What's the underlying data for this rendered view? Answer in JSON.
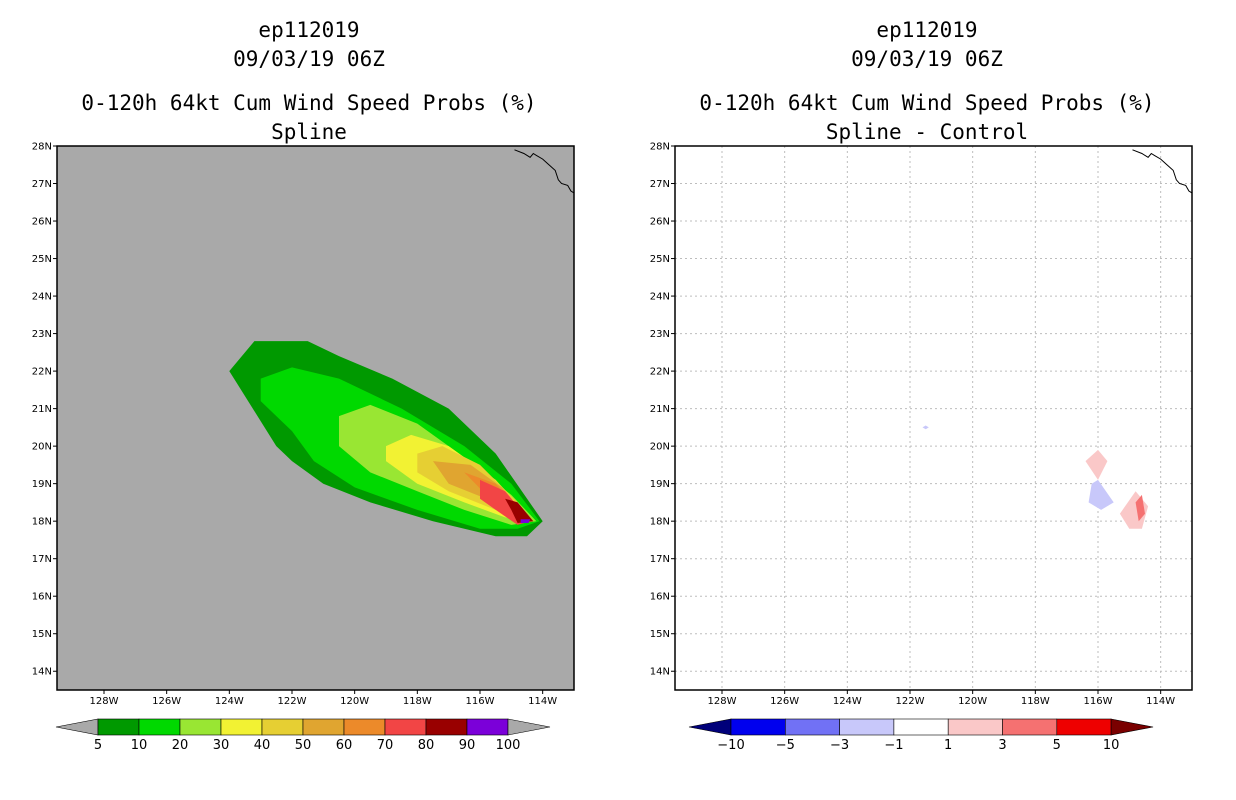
{
  "colors": {
    "spline_background": "#a9a9a9",
    "spline_levels": [
      "#009900",
      "#00d900",
      "#99e633",
      "#f2f233",
      "#e6cf33",
      "#e0a530",
      "#ec8a2a",
      "#f24545",
      "#990000",
      "#7b00d9"
    ],
    "diff_levels": [
      "#00007a",
      "#0000ee",
      "#7171f5",
      "#c8c8fa",
      "#ffffff",
      "#fac8c8",
      "#f57171",
      "#ee0000",
      "#7a0000"
    ],
    "neutral_arrow": "#a9a9a9"
  },
  "chart_data": [
    {
      "type": "filled-contour",
      "storm": "ep112019",
      "datetime": "09/03/19 06Z",
      "title": "0-120h 64kt Cum Wind Speed Probs (%)",
      "subtitle": "Spline",
      "lon_range": [
        -129.5,
        -113.0
      ],
      "lat_range": [
        13.5,
        28.0
      ],
      "xticks": [
        "128W",
        "126W",
        "124W",
        "122W",
        "120W",
        "118W",
        "116W",
        "114W"
      ],
      "yticks": [
        "14N",
        "15N",
        "16N",
        "17N",
        "18N",
        "19N",
        "20N",
        "21N",
        "22N",
        "23N",
        "24N",
        "25N",
        "26N",
        "27N",
        "28N"
      ],
      "colorbar": {
        "labels": [
          "5",
          "10",
          "20",
          "30",
          "40",
          "50",
          "60",
          "70",
          "80",
          "90",
          "100"
        ],
        "colors": [
          "#009900",
          "#00d900",
          "#99e633",
          "#f2f233",
          "#e6cf33",
          "#e0a530",
          "#ec8a2a",
          "#f24545",
          "#990000",
          "#7b00d9"
        ]
      },
      "regions": [
        {
          "level": "5-10",
          "color": "#009900",
          "points": [
            [
              -124.0,
              22.0
            ],
            [
              -123.2,
              22.8
            ],
            [
              -121.5,
              22.8
            ],
            [
              -120.5,
              22.4
            ],
            [
              -118.8,
              21.8
            ],
            [
              -117.0,
              21.0
            ],
            [
              -115.5,
              19.8
            ],
            [
              -114.0,
              18.0
            ],
            [
              -114.5,
              17.6
            ],
            [
              -115.5,
              17.6
            ],
            [
              -117.5,
              18.0
            ],
            [
              -119.5,
              18.5
            ],
            [
              -121.0,
              19.0
            ],
            [
              -122.0,
              19.6
            ],
            [
              -122.5,
              20.0
            ]
          ]
        },
        {
          "level": "10-20",
          "color": "#00d900",
          "points": [
            [
              -123.0,
              21.8
            ],
            [
              -122.0,
              22.1
            ],
            [
              -120.5,
              21.8
            ],
            [
              -118.5,
              21.0
            ],
            [
              -116.5,
              20.0
            ],
            [
              -115.0,
              19.0
            ],
            [
              -114.1,
              18.0
            ],
            [
              -114.8,
              17.8
            ],
            [
              -116.0,
              17.8
            ],
            [
              -118.0,
              18.3
            ],
            [
              -120.0,
              18.9
            ],
            [
              -121.3,
              19.6
            ],
            [
              -122.0,
              20.4
            ],
            [
              -123.0,
              21.2
            ]
          ]
        },
        {
          "level": "20-30",
          "color": "#99e633",
          "points": [
            [
              -120.5,
              20.8
            ],
            [
              -119.5,
              21.1
            ],
            [
              -118.0,
              20.6
            ],
            [
              -116.5,
              19.7
            ],
            [
              -115.0,
              18.7
            ],
            [
              -114.2,
              18.0
            ],
            [
              -115.0,
              17.9
            ],
            [
              -116.5,
              18.3
            ],
            [
              -118.0,
              18.8
            ],
            [
              -119.5,
              19.3
            ],
            [
              -120.5,
              20.0
            ]
          ]
        },
        {
          "level": "30-40",
          "color": "#f2f233",
          "points": [
            [
              -119.0,
              20.0
            ],
            [
              -118.2,
              20.3
            ],
            [
              -117.0,
              20.0
            ],
            [
              -115.5,
              19.1
            ],
            [
              -114.3,
              18.0
            ],
            [
              -115.2,
              18.1
            ],
            [
              -116.5,
              18.5
            ],
            [
              -118.0,
              19.0
            ],
            [
              -119.0,
              19.6
            ]
          ]
        },
        {
          "level": "40-50",
          "color": "#e6cf33",
          "points": [
            [
              -118.0,
              19.8
            ],
            [
              -117.2,
              20.0
            ],
            [
              -116.0,
              19.5
            ],
            [
              -114.8,
              18.5
            ],
            [
              -114.3,
              18.0
            ],
            [
              -115.5,
              18.3
            ],
            [
              -117.0,
              18.8
            ],
            [
              -118.0,
              19.3
            ]
          ]
        },
        {
          "level": "50-60",
          "color": "#e0a530",
          "points": [
            [
              -117.5,
              19.6
            ],
            [
              -116.3,
              19.5
            ],
            [
              -115.3,
              18.9
            ],
            [
              -114.5,
              18.1
            ],
            [
              -115.8,
              18.6
            ],
            [
              -117.0,
              19.0
            ]
          ]
        },
        {
          "level": "60-70",
          "color": "#ec8a2a",
          "points": [
            [
              -116.5,
              19.3
            ],
            [
              -115.5,
              19.0
            ],
            [
              -114.6,
              18.2
            ],
            [
              -115.8,
              18.7
            ]
          ]
        },
        {
          "level": "70-80",
          "color": "#f24545",
          "points": [
            [
              -116.0,
              19.1
            ],
            [
              -115.2,
              18.8
            ],
            [
              -114.4,
              18.0
            ],
            [
              -114.8,
              17.9
            ],
            [
              -115.5,
              18.3
            ],
            [
              -116.0,
              18.6
            ]
          ]
        },
        {
          "level": "80-90",
          "color": "#990000",
          "points": [
            [
              -115.2,
              18.6
            ],
            [
              -114.8,
              18.5
            ],
            [
              -114.3,
              18.0
            ],
            [
              -114.8,
              17.95
            ],
            [
              -115.0,
              18.3
            ]
          ]
        },
        {
          "level": "90-100",
          "color": "#7b00d9",
          "points": [
            [
              -114.7,
              18.05
            ],
            [
              -114.4,
              18.05
            ],
            [
              -114.45,
              17.95
            ],
            [
              -114.7,
              17.95
            ]
          ]
        }
      ]
    },
    {
      "type": "filled-contour",
      "storm": "ep112019",
      "datetime": "09/03/19 06Z",
      "title": "0-120h 64kt Cum Wind Speed Probs (%)",
      "subtitle": "Spline - Control",
      "lon_range": [
        -129.5,
        -113.0
      ],
      "lat_range": [
        13.5,
        28.0
      ],
      "xticks": [
        "128W",
        "126W",
        "124W",
        "122W",
        "120W",
        "118W",
        "116W",
        "114W"
      ],
      "yticks": [
        "14N",
        "15N",
        "16N",
        "17N",
        "18N",
        "19N",
        "20N",
        "21N",
        "22N",
        "23N",
        "24N",
        "25N",
        "26N",
        "27N",
        "28N"
      ],
      "grid": true,
      "colorbar": {
        "labels": [
          "-10",
          "-5",
          "-3",
          "-1",
          "1",
          "3",
          "5",
          "10"
        ],
        "colors": [
          "#00007a",
          "#0000ee",
          "#7171f5",
          "#c8c8fa",
          "#ffffff",
          "#fac8c8",
          "#f57171",
          "#ee0000",
          "#7a0000"
        ]
      },
      "regions": [
        {
          "level": "-3 to -1",
          "color": "#c8c8fa",
          "points": [
            [
              -121.5,
              20.55
            ],
            [
              -121.4,
              20.5
            ],
            [
              -121.5,
              20.45
            ],
            [
              -121.6,
              20.5
            ]
          ]
        },
        {
          "level": "1 to 3",
          "color": "#fac8c8",
          "points": [
            [
              -116.4,
              19.6
            ],
            [
              -116.0,
              19.9
            ],
            [
              -115.7,
              19.6
            ],
            [
              -116.0,
              19.1
            ]
          ]
        },
        {
          "level": "-3 to -1",
          "color": "#c8c8fa",
          "points": [
            [
              -116.2,
              19.0
            ],
            [
              -116.0,
              19.1
            ],
            [
              -115.5,
              18.5
            ],
            [
              -115.9,
              18.3
            ],
            [
              -116.3,
              18.5
            ]
          ]
        },
        {
          "level": "1 to 3",
          "color": "#fac8c8",
          "points": [
            [
              -115.3,
              18.2
            ],
            [
              -114.8,
              18.8
            ],
            [
              -114.4,
              18.4
            ],
            [
              -114.6,
              17.8
            ],
            [
              -115.0,
              17.8
            ]
          ]
        },
        {
          "level": "3 to 5",
          "color": "#f57171",
          "points": [
            [
              -114.8,
              18.5
            ],
            [
              -114.6,
              18.7
            ],
            [
              -114.5,
              18.2
            ],
            [
              -114.7,
              18.0
            ]
          ]
        }
      ]
    }
  ]
}
